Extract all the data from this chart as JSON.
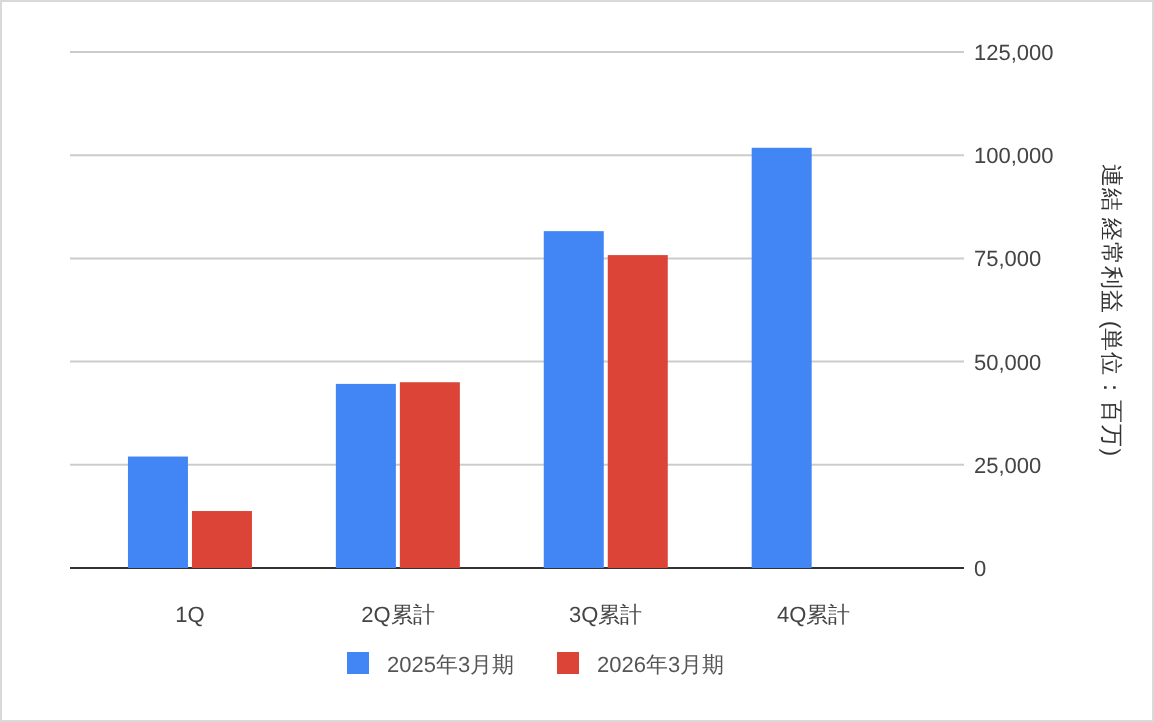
{
  "chart_data": {
    "type": "bar",
    "categories": [
      "1Q",
      "2Q累計",
      "3Q累計",
      "4Q累計"
    ],
    "series": [
      {
        "name": "2025年3月期",
        "color": "#4285f4",
        "values": [
          27000,
          44600,
          81600,
          101800
        ]
      },
      {
        "name": "2026年3月期",
        "color": "#db4437",
        "values": [
          13800,
          45000,
          75800,
          null
        ]
      }
    ],
    "ylabel": "連結 経常利益 (単位：百万)",
    "ylim": [
      0,
      125000
    ],
    "yticks": [
      0,
      {
        "value": 25000,
        "label": "25,000"
      },
      {
        "value": 50000,
        "label": "50,000"
      },
      {
        "value": 75000,
        "label": "75,000"
      },
      {
        "value": 100000,
        "label": "100,000"
      },
      {
        "value": 125000,
        "label": "125,000"
      }
    ],
    "grid": "y",
    "legend": "bottom"
  }
}
